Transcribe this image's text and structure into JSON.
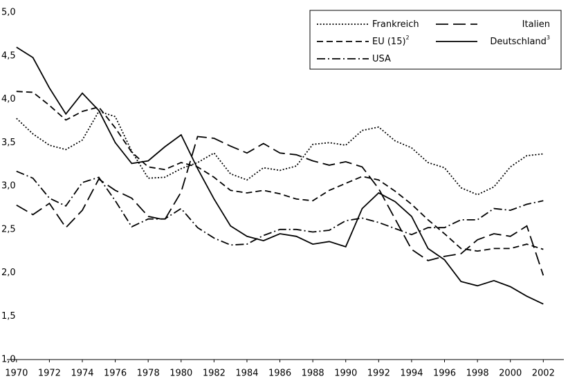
{
  "chart_data": {
    "type": "line",
    "x": [
      1970,
      1971,
      1972,
      1973,
      1974,
      1975,
      1976,
      1977,
      1978,
      1979,
      1980,
      1981,
      1982,
      1983,
      1984,
      1985,
      1986,
      1987,
      1988,
      1989,
      1990,
      1991,
      1992,
      1993,
      1994,
      1995,
      1996,
      1997,
      1998,
      1999,
      2000,
      2001,
      2002
    ],
    "xlim": [
      1969,
      2003.5
    ],
    "xticks": [
      1970,
      1972,
      1974,
      1976,
      1978,
      1980,
      1982,
      1984,
      1986,
      1988,
      1990,
      1992,
      1994,
      1996,
      1998,
      2000,
      2002
    ],
    "ylim": [
      1.0,
      5.0
    ],
    "yticks": [
      {
        "value": 1.0,
        "label": "1,0"
      },
      {
        "value": 1.5,
        "label": "1,5"
      },
      {
        "value": 2.0,
        "label": "2,0"
      },
      {
        "value": 2.5,
        "label": "2,5"
      },
      {
        "value": 3.0,
        "label": "3,0"
      },
      {
        "value": 3.5,
        "label": "3,5"
      },
      {
        "value": 4.0,
        "label": "4,0"
      },
      {
        "value": 4.5,
        "label": "4,5"
      },
      {
        "value": 5.0,
        "label": "5,0"
      }
    ],
    "series": [
      {
        "name": "Frankreich",
        "color": "#000000",
        "dash": "2 2.5",
        "values": [
          3.78,
          3.6,
          3.47,
          3.42,
          3.53,
          3.86,
          3.8,
          3.4,
          3.09,
          3.1,
          3.2,
          3.27,
          3.38,
          3.14,
          3.07,
          3.21,
          3.18,
          3.23,
          3.48,
          3.5,
          3.47,
          3.64,
          3.68,
          3.52,
          3.44,
          3.27,
          3.21,
          2.98,
          2.9,
          2.99,
          3.22,
          3.35,
          3.37
        ]
      },
      {
        "name": "Italien",
        "color": "#000000",
        "dash": "18 7",
        "values": [
          2.78,
          2.67,
          2.8,
          2.52,
          2.72,
          3.08,
          2.95,
          2.86,
          2.65,
          2.61,
          2.93,
          3.57,
          3.55,
          3.46,
          3.38,
          3.49,
          3.38,
          3.36,
          3.29,
          3.24,
          3.28,
          3.22,
          2.97,
          2.62,
          2.27,
          2.14,
          2.19,
          2.22,
          2.38,
          2.45,
          2.42,
          2.54,
          1.97
        ]
      },
      {
        "name": "EU (15)",
        "footnote": "2",
        "color": "#000000",
        "dash": "9 5",
        "values": [
          4.09,
          4.08,
          3.93,
          3.76,
          3.86,
          3.91,
          3.67,
          3.39,
          3.22,
          3.19,
          3.27,
          3.22,
          3.1,
          2.95,
          2.92,
          2.95,
          2.91,
          2.85,
          2.83,
          2.95,
          3.03,
          3.11,
          3.07,
          2.94,
          2.79,
          2.61,
          2.45,
          2.28,
          2.25,
          2.28,
          2.28,
          2.33,
          2.27
        ]
      },
      {
        "name": "Deutschland",
        "footnote": "3",
        "color": "#000000",
        "dash": "none",
        "values": [
          4.6,
          4.48,
          4.13,
          3.83,
          4.07,
          3.87,
          3.5,
          3.26,
          3.29,
          3.45,
          3.59,
          3.2,
          2.85,
          2.54,
          2.42,
          2.37,
          2.45,
          2.42,
          2.33,
          2.36,
          2.3,
          2.74,
          2.92,
          2.82,
          2.65,
          2.28,
          2.15,
          1.9,
          1.85,
          1.91,
          1.84,
          1.73,
          1.64
        ]
      },
      {
        "name": "USA",
        "color": "#000000",
        "dash": "12 4 2 4",
        "values": [
          3.17,
          3.09,
          2.86,
          2.77,
          3.04,
          3.1,
          2.83,
          2.53,
          2.62,
          2.62,
          2.74,
          2.52,
          2.4,
          2.32,
          2.33,
          2.43,
          2.5,
          2.5,
          2.47,
          2.49,
          2.6,
          2.63,
          2.58,
          2.51,
          2.44,
          2.52,
          2.52,
          2.61,
          2.61,
          2.74,
          2.72,
          2.79,
          2.83
        ]
      }
    ]
  }
}
